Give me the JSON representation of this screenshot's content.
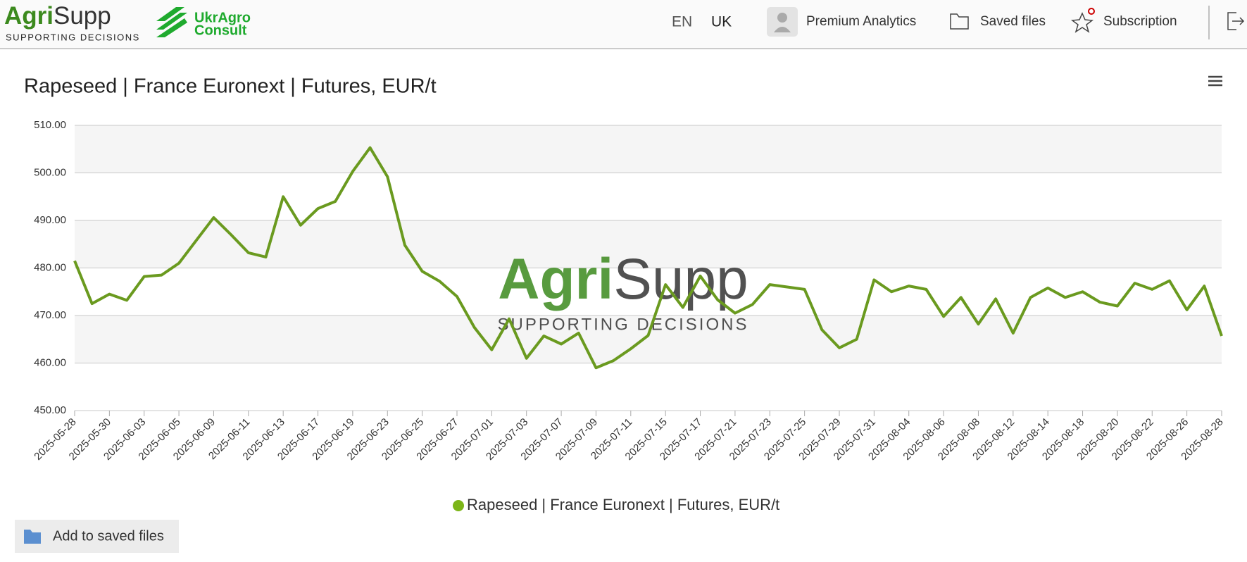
{
  "header": {
    "brand_a": "Agri",
    "brand_b": "Supp",
    "tagline": "SUPPORTING DECISIONS",
    "partner_a": "UkrAgro",
    "partner_b": "Consult",
    "languages": [
      "EN",
      "UK"
    ],
    "menu": [
      "Premium Analytics",
      "Saved files",
      "Subscription"
    ]
  },
  "watermark": {
    "brand_a": "Agri",
    "brand_b": "Supp",
    "tagline": "SUPPORTING DECISIONS"
  },
  "save_button": "Add to saved files",
  "chart_data": {
    "type": "line",
    "title": "Rapeseed | France Euronext | Futures, EUR/t",
    "categories": [
      "2025-05-28",
      null,
      "2025-05-30",
      null,
      "2025-06-03",
      null,
      "2025-06-05",
      null,
      "2025-06-09",
      null,
      "2025-06-11",
      null,
      "2025-06-13",
      null,
      "2025-06-17",
      null,
      "2025-06-19",
      null,
      "2025-06-23",
      null,
      "2025-06-25",
      null,
      "2025-06-27",
      null,
      "2025-07-01",
      null,
      "2025-07-03",
      null,
      "2025-07-07",
      null,
      "2025-07-09",
      null,
      "2025-07-11",
      null,
      "2025-07-15",
      null,
      "2025-07-17",
      null,
      "2025-07-21",
      null,
      "2025-07-23",
      null,
      "2025-07-25",
      null,
      "2025-07-29",
      null,
      "2025-07-31",
      null,
      "2025-08-04",
      null,
      "2025-08-06",
      null,
      "2025-08-08",
      null,
      "2025-08-12",
      null,
      "2025-08-14",
      null,
      "2025-08-18",
      null,
      "2025-08-20",
      null,
      "2025-08-22",
      null,
      "2025-08-26",
      null,
      "2025-08-28"
    ],
    "series": [
      {
        "name": "Rapeseed | France Euronext | Futures, EUR/t",
        "color": "#6a9a1f",
        "legend_color": "#7cb518",
        "values": [
          481.5,
          472.5,
          474.5,
          473.2,
          478.2,
          478.5,
          481,
          485.8,
          490.6,
          487,
          483.2,
          482.3,
          495,
          489,
          492.5,
          494,
          500.3,
          505.3,
          499.2,
          484.8,
          479.3,
          477.2,
          474,
          467.5,
          462.8,
          469.3,
          461,
          465.7,
          464,
          466.3,
          459,
          460.5,
          463,
          465.8,
          476.5,
          471.7,
          478.3,
          473.3,
          470.5,
          472.3,
          476.5,
          476,
          475.5,
          467,
          463.2,
          465,
          477.5,
          475,
          476.2,
          475.5,
          469.8,
          473.8,
          468.2,
          473.5,
          466.3,
          473.8,
          475.8,
          473.8,
          475,
          472.8,
          472,
          476.8,
          475.5,
          477.3,
          471.2,
          476.2,
          465.7
        ]
      }
    ],
    "ylim": [
      450,
      510
    ],
    "yticks": [
      {
        "value": 450,
        "label": "450.00"
      },
      {
        "value": 460,
        "label": "460.00"
      },
      {
        "value": 470,
        "label": "470.00"
      },
      {
        "value": 480,
        "label": "480.00"
      },
      {
        "value": 490,
        "label": "490.00"
      },
      {
        "value": 500,
        "label": "500.00"
      },
      {
        "value": 510,
        "label": "510.00"
      }
    ],
    "grid": true,
    "legend": "bottom"
  }
}
